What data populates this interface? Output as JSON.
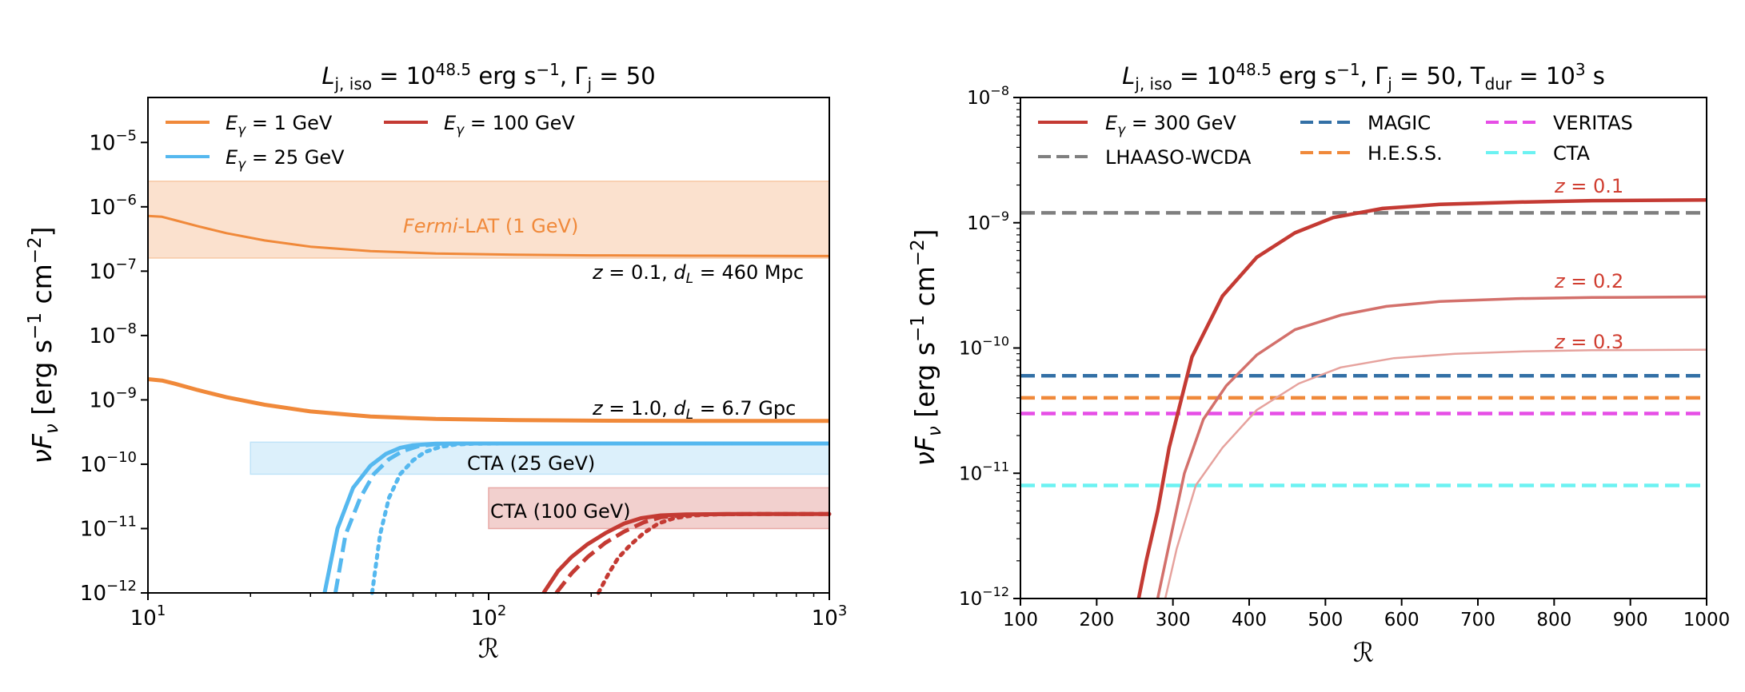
{
  "chart_data": [
    {
      "type": "line",
      "title": "L_{j,iso} = 10^{48.5} erg s^{-1}, Γ_j = 50",
      "title_parts": {
        "l_sym": "L",
        "l_sub": "j, iso",
        "eq1": " = 10",
        "exp": "48.5",
        "unit": " erg s",
        "unit_exp": "−1",
        "sep": ", ",
        "gamma": "Γ",
        "gamma_sub": "j",
        "eq2": " = 50"
      },
      "xlabel": "ℛ",
      "ylabel": "νF_ν [erg s^{-1} cm^{-2}]",
      "ylabel_parts": {
        "nu": "ν",
        "f": "F",
        "f_sub": "ν",
        "bracket": " [erg s",
        "e1": "−1",
        "cm": " cm",
        "e2": "−2",
        "close": "]"
      },
      "xscale": "log",
      "yscale": "log",
      "xlim": [
        10,
        1000
      ],
      "ylim": [
        1e-12,
        5e-05
      ],
      "xticks": [
        10,
        100,
        1000
      ],
      "xtick_labels": [
        {
          "base": "10",
          "exp": "1"
        },
        {
          "base": "10",
          "exp": "2"
        },
        {
          "base": "10",
          "exp": "3"
        }
      ],
      "yticks": [
        1e-12,
        1e-11,
        1e-10,
        1e-09,
        1e-08,
        1e-07,
        1e-06,
        1e-05
      ],
      "ytick_labels": [
        {
          "base": "10",
          "exp": "−12"
        },
        {
          "base": "10",
          "exp": "−11"
        },
        {
          "base": "10",
          "exp": "−10"
        },
        {
          "base": "10",
          "exp": "−9"
        },
        {
          "base": "10",
          "exp": "−8"
        },
        {
          "base": "10",
          "exp": "−7"
        },
        {
          "base": "10",
          "exp": "−6"
        },
        {
          "base": "10",
          "exp": "−5"
        }
      ],
      "legend": {
        "position": "top-left",
        "entries": [
          {
            "sym": "E",
            "sub": "γ",
            "text": " = 1 GeV",
            "color": "#f0893a"
          },
          {
            "sym": "E",
            "sub": "γ",
            "text": " = 100 GeV",
            "color": "#c43a33"
          },
          {
            "sym": "E",
            "sub": "γ",
            "text": " = 25 GeV",
            "color": "#55b8ef"
          }
        ]
      },
      "bands": [
        {
          "label_italic": "Fermi",
          "label_rest": "-LAT (1 GeV)",
          "x": [
            10,
            1000
          ],
          "y": [
            1.6e-07,
            2.5e-06
          ],
          "color": "#f7c9a6",
          "text_color": "#f0893a"
        },
        {
          "label_italic": "",
          "label_rest": "CTA (25 GeV)",
          "x": [
            20,
            1000
          ],
          "y": [
            7e-11,
            2.2e-10
          ],
          "color": "#bfe3f8",
          "text_color": "#55b8ef"
        },
        {
          "label_italic": "",
          "label_rest": "CTA (100 GeV)",
          "x": [
            100,
            1000
          ],
          "y": [
            1e-11,
            4.3e-11
          ],
          "color": "#e8a9a6",
          "text_color": "#c43a33"
        }
      ],
      "annotations": [
        {
          "z": "z",
          "zval": " = 0.1, ",
          "d": "d",
          "dsub": "L",
          "dval": " = 460 Mpc"
        },
        {
          "z": "z",
          "zval": " = 1.0, ",
          "d": "d",
          "dsub": "L",
          "dval": " = 6.7 Gpc"
        }
      ],
      "series": [
        {
          "name": "E_γ = 1 GeV, z = 0.1",
          "color": "#f0893a",
          "dash": "solid",
          "width": 3,
          "x": [
            10,
            11,
            12,
            14,
            17,
            22,
            30,
            45,
            70,
            120,
            200,
            400,
            1000
          ],
          "y": [
            7.2e-07,
            7e-07,
            6.2e-07,
            5e-07,
            3.9e-07,
            3e-07,
            2.4e-07,
            2.05e-07,
            1.88e-07,
            1.8e-07,
            1.76e-07,
            1.74e-07,
            1.72e-07
          ]
        },
        {
          "name": "E_γ = 1 GeV, z = 1.0",
          "color": "#f0893a",
          "dash": "solid",
          "width": 5,
          "x": [
            10,
            11,
            12,
            14,
            17,
            22,
            30,
            45,
            70,
            120,
            200,
            400,
            1000
          ],
          "y": [
            2.1e-09,
            2e-09,
            1.78e-09,
            1.42e-09,
            1.1e-09,
            8.4e-10,
            6.6e-10,
            5.5e-10,
            5.05e-10,
            4.85e-10,
            4.75e-10,
            4.7e-10,
            4.7e-10
          ]
        },
        {
          "name": "E_γ = 25 GeV, z = 1.0",
          "color": "#55b8ef",
          "dash": "solid",
          "width": 5,
          "x": [
            33,
            36,
            40,
            45,
            50,
            55,
            60,
            70,
            80,
            100,
            150,
            300,
            1000
          ],
          "y": [
            1e-12,
            1e-11,
            4.3e-11,
            9.5e-11,
            1.45e-10,
            1.8e-10,
            1.97e-10,
            2.08e-10,
            2.1e-10,
            2.1e-10,
            2.1e-10,
            2.1e-10,
            2.1e-10
          ]
        },
        {
          "name": "E_γ = 25 GeV, z = 1.0 (dashed)",
          "color": "#55b8ef",
          "dash": "dashed",
          "width": 5,
          "x": [
            35.5,
            38,
            42,
            46,
            51,
            56,
            62,
            70,
            80,
            100,
            150,
            300,
            1000
          ],
          "y": [
            1e-12,
            8e-12,
            3e-11,
            7e-11,
            1.2e-10,
            1.6e-10,
            1.9e-10,
            2.05e-10,
            2.1e-10,
            2.1e-10,
            2.1e-10,
            2.1e-10,
            2.1e-10
          ]
        },
        {
          "name": "E_γ = 25 GeV, z = 1.0 (dotted)",
          "color": "#55b8ef",
          "dash": "dotted",
          "width": 5,
          "x": [
            45.5,
            48,
            51,
            55,
            60,
            65,
            72,
            80,
            90,
            110,
            150,
            300,
            1000
          ],
          "y": [
            1e-12,
            8e-12,
            3e-11,
            7e-11,
            1.15e-10,
            1.55e-10,
            1.85e-10,
            2.02e-10,
            2.08e-10,
            2.1e-10,
            2.1e-10,
            2.1e-10,
            2.1e-10
          ]
        },
        {
          "name": "E_γ = 100 GeV, z = 1.0",
          "color": "#c43a33",
          "dash": "solid",
          "width": 5,
          "x": [
            145,
            160,
            175,
            195,
            220,
            250,
            280,
            320,
            380,
            500,
            1000
          ],
          "y": [
            1e-12,
            2.2e-12,
            3.6e-12,
            5.7e-12,
            8.5e-12,
            1.2e-11,
            1.45e-11,
            1.6e-11,
            1.66e-11,
            1.68e-11,
            1.68e-11
          ]
        },
        {
          "name": "E_γ = 100 GeV, z = 1.0 (dashed)",
          "color": "#c43a33",
          "dash": "dashed",
          "width": 5,
          "x": [
            158,
            175,
            195,
            220,
            250,
            285,
            320,
            380,
            450,
            600,
            1000
          ],
          "y": [
            1e-12,
            2e-12,
            3.6e-12,
            6e-12,
            9e-12,
            1.25e-11,
            1.5e-11,
            1.63e-11,
            1.67e-11,
            1.68e-11,
            1.68e-11
          ]
        },
        {
          "name": "E_γ = 100 GeV, z = 1.0 (dotted)",
          "color": "#c43a33",
          "dash": "dotted",
          "width": 5,
          "x": [
            210,
            225,
            240,
            260,
            285,
            315,
            350,
            400,
            470,
            600,
            1000
          ],
          "y": [
            1e-12,
            2e-12,
            3.5e-12,
            5.5e-12,
            8.5e-12,
            1.2e-11,
            1.45e-11,
            1.6e-11,
            1.66e-11,
            1.68e-11,
            1.68e-11
          ]
        }
      ]
    },
    {
      "type": "line",
      "title": "L_{j,iso} = 10^{48.5} erg s^{-1}, Γ_j = 50, T_dur = 10^3 s",
      "title_parts": {
        "l_sym": "L",
        "l_sub": "j, iso",
        "eq1": " = 10",
        "exp": "48.5",
        "unit": " erg s",
        "unit_exp": "−1",
        "sep": ", ",
        "gamma": "Γ",
        "gamma_sub": "j",
        "eq2": " = 50",
        "sep2": ", ",
        "t": "T",
        "t_sub": "dur",
        "eq3": " = 10",
        "t_exp": "3",
        "t_unit": " s"
      },
      "xlabel": "ℛ",
      "ylabel": "νF_ν [erg s^{-1} cm^{-2}]",
      "ylabel_parts": {
        "nu": "ν",
        "f": "F",
        "f_sub": "ν",
        "bracket": " [erg s",
        "e1": "−1",
        "cm": " cm",
        "e2": "−2",
        "close": "]"
      },
      "xscale": "linear",
      "yscale": "log",
      "xlim": [
        100,
        1000
      ],
      "ylim": [
        1e-12,
        1e-08
      ],
      "xticks": [
        100,
        200,
        300,
        400,
        500,
        600,
        700,
        800,
        900,
        1000
      ],
      "xtick_labels": [
        "100",
        "200",
        "300",
        "400",
        "500",
        "600",
        "700",
        "800",
        "900",
        "1000"
      ],
      "yticks": [
        1e-12,
        1e-11,
        1e-10,
        1e-09,
        1e-08
      ],
      "ytick_labels": [
        {
          "base": "10",
          "exp": "−12"
        },
        {
          "base": "10",
          "exp": "−11"
        },
        {
          "base": "10",
          "exp": "−10"
        },
        {
          "base": "10",
          "exp": "−9"
        },
        {
          "base": "10",
          "exp": "−8"
        }
      ],
      "legend": {
        "position": "top",
        "entries": [
          {
            "sym": "E",
            "sub": "γ",
            "text": " = 300 GeV",
            "color": "#c43a33",
            "dash": "solid"
          },
          {
            "sym": "",
            "sub": "",
            "text": "LHAASO-WCDA",
            "color": "#7f7f7f",
            "dash": "dashed"
          },
          {
            "sym": "",
            "sub": "",
            "text": "MAGIC",
            "color": "#3370a6",
            "dash": "dashed"
          },
          {
            "sym": "",
            "sub": "",
            "text": "H.E.S.S.",
            "color": "#f0893a",
            "dash": "dashed"
          },
          {
            "sym": "",
            "sub": "",
            "text": "VERITAS",
            "color": "#e64ee6",
            "dash": "dashed"
          },
          {
            "sym": "",
            "sub": "",
            "text": "CTA",
            "color": "#6cf2f2",
            "dash": "dashed"
          }
        ]
      },
      "sensitivities": [
        {
          "name": "LHAASO-WCDA",
          "y": 1.2e-09,
          "color": "#7f7f7f"
        },
        {
          "name": "MAGIC",
          "y": 6e-11,
          "color": "#3370a6"
        },
        {
          "name": "H.E.S.S.",
          "y": 4e-11,
          "color": "#f0893a"
        },
        {
          "name": "VERITAS",
          "y": 3e-11,
          "color": "#e64ee6"
        },
        {
          "name": "CTA",
          "y": 8e-12,
          "color": "#6cf2f2"
        }
      ],
      "curve_labels": [
        {
          "z": "z",
          "text": " = 0.1",
          "color": "#d03d30"
        },
        {
          "z": "z",
          "text": " = 0.2",
          "color": "#d03d30"
        },
        {
          "z": "z",
          "text": " = 0.3",
          "color": "#d03d30"
        }
      ],
      "series": [
        {
          "name": "z = 0.1",
          "color": "#c43a33",
          "opacity": 1.0,
          "width": 4.5,
          "x": [
            255,
            265,
            280,
            295,
            325,
            365,
            410,
            460,
            510,
            575,
            650,
            750,
            850,
            1000
          ],
          "y": [
            1e-12,
            2e-12,
            5e-12,
            1.6e-11,
            8.5e-11,
            2.6e-10,
            5.3e-10,
            8.3e-10,
            1.1e-09,
            1.3e-09,
            1.4e-09,
            1.46e-09,
            1.5e-09,
            1.52e-09
          ]
        },
        {
          "name": "z = 0.2",
          "color": "#d3706b",
          "opacity": 1.0,
          "width": 3.5,
          "x": [
            280,
            295,
            315,
            340,
            370,
            410,
            460,
            520,
            580,
            650,
            750,
            850,
            1000
          ],
          "y": [
            1e-12,
            2.7e-12,
            1e-11,
            2.7e-11,
            5e-11,
            8.8e-11,
            1.4e-10,
            1.83e-10,
            2.15e-10,
            2.35e-10,
            2.48e-10,
            2.53e-10,
            2.56e-10
          ]
        },
        {
          "name": "z = 0.3",
          "color": "#e6a29d",
          "opacity": 1.0,
          "width": 2.5,
          "x": [
            290,
            305,
            330,
            365,
            410,
            465,
            520,
            590,
            670,
            760,
            850,
            1000
          ],
          "y": [
            1e-12,
            2.5e-12,
            8e-12,
            1.6e-11,
            3.2e-11,
            5.2e-11,
            7e-11,
            8.3e-11,
            9e-11,
            9.4e-11,
            9.6e-11,
            9.7e-11
          ]
        }
      ]
    }
  ]
}
